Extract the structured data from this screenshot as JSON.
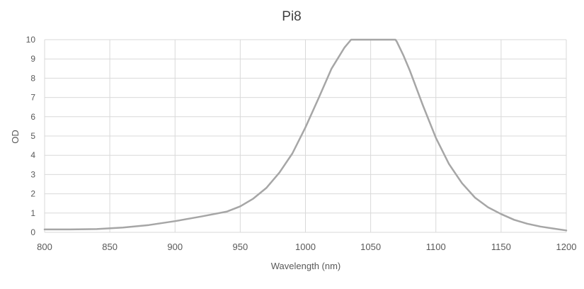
{
  "chart_data": {
    "type": "line",
    "title": "Pi8",
    "xlabel": "Wavelength (nm)",
    "ylabel": "OD",
    "xlim": [
      800,
      1200
    ],
    "ylim": [
      0,
      10
    ],
    "x_ticks": [
      800,
      850,
      900,
      950,
      1000,
      1050,
      1100,
      1150,
      1200
    ],
    "y_ticks": [
      0,
      1,
      2,
      3,
      4,
      5,
      6,
      7,
      8,
      9,
      10
    ],
    "grid": true,
    "legend": "none",
    "series": [
      {
        "name": "Pi8",
        "color": "#a6a6a6",
        "x": [
          800,
          820,
          840,
          860,
          880,
          900,
          920,
          940,
          950,
          960,
          970,
          980,
          990,
          1000,
          1010,
          1020,
          1030,
          1035,
          1036,
          1069,
          1070,
          1075,
          1080,
          1090,
          1100,
          1110,
          1120,
          1130,
          1140,
          1150,
          1160,
          1170,
          1180,
          1190,
          1200
        ],
        "y": [
          0.15,
          0.15,
          0.17,
          0.25,
          0.38,
          0.58,
          0.82,
          1.08,
          1.35,
          1.75,
          2.3,
          3.1,
          4.1,
          5.45,
          6.95,
          8.5,
          9.6,
          10.0,
          10.0,
          10.0,
          9.9,
          9.2,
          8.4,
          6.6,
          4.9,
          3.55,
          2.55,
          1.8,
          1.3,
          0.95,
          0.65,
          0.45,
          0.3,
          0.2,
          0.1
        ]
      }
    ]
  }
}
